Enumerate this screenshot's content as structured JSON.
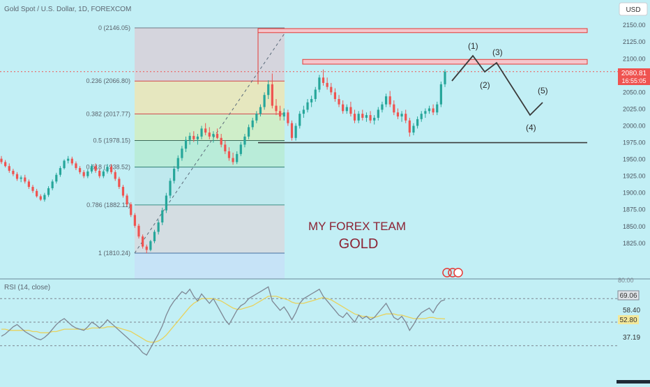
{
  "header": {
    "symbol": "Gold Spot / U.S. Dollar, 1D, FOREXCOM",
    "currency_button": "USD"
  },
  "colors": {
    "background": "#c2eff5",
    "up_candle": "#26a69a",
    "down_candle": "#ef5350",
    "zone_fill": "#f5c6cc",
    "zone_border": "#e53935",
    "rsi_line": "#7e8794",
    "rsi_ma_line": "#e8d25c",
    "price_tag": "#ef5350"
  },
  "price_axis": {
    "ticks": [
      "2150.00",
      "2125.00",
      "2100.00",
      "2075.00",
      "2050.00",
      "2025.00",
      "2000.00",
      "1975.00",
      "1950.00",
      "1925.00",
      "1900.00",
      "1875.00",
      "1850.00",
      "1825.00"
    ]
  },
  "last_price": {
    "value": "2080.81",
    "countdown": "16:55:05"
  },
  "fib_levels": [
    {
      "label": "0 (2146.05)",
      "price": 2146.05
    },
    {
      "label": "0.236 (2066.80)",
      "price": 2066.8
    },
    {
      "label": "0.382 (2017.77)",
      "price": 2017.77
    },
    {
      "label": "0.5 (1978.15)",
      "price": 1978.15
    },
    {
      "label": "0.618 (1938.52)",
      "price": 1938.52
    },
    {
      "label": "0.786 (1882.11)",
      "price": 1882.11
    },
    {
      "label": "1 (1810.24)",
      "price": 1810.24
    }
  ],
  "resistance_zones": [
    {
      "top": 2145,
      "bottom": 2139
    },
    {
      "top": 2099,
      "bottom": 2092
    }
  ],
  "support_line": 1975,
  "wave_labels": [
    "(1)",
    "(2)",
    "(3)",
    "(4)",
    "(5)"
  ],
  "watermark": {
    "line1": "MY FOREX TEAM",
    "line2": "GOLD"
  },
  "rsi": {
    "title": "RSI (14, close)",
    "value_tag": "69.06",
    "ma_tag": "52.80",
    "axis_labels": [
      "80.00",
      "58.40",
      "37.19"
    ]
  },
  "chart_data": {
    "type": "candlestick",
    "title": "Gold Spot / U.S. Dollar, 1D, FOREXCOM",
    "ylim": [
      1810,
      2160
    ],
    "candles": [
      [
        1951,
        1955,
        1943,
        1946
      ],
      [
        1946,
        1949,
        1938,
        1940
      ],
      [
        1940,
        1944,
        1930,
        1933
      ],
      [
        1933,
        1936,
        1925,
        1928
      ],
      [
        1928,
        1931,
        1918,
        1921
      ],
      [
        1921,
        1926,
        1916,
        1923
      ],
      [
        1923,
        1927,
        1914,
        1917
      ],
      [
        1917,
        1920,
        1906,
        1909
      ],
      [
        1909,
        1912,
        1900,
        1903
      ],
      [
        1903,
        1906,
        1893,
        1895
      ],
      [
        1895,
        1898,
        1888,
        1890
      ],
      [
        1890,
        1900,
        1887,
        1897
      ],
      [
        1897,
        1910,
        1894,
        1907
      ],
      [
        1907,
        1920,
        1904,
        1917
      ],
      [
        1917,
        1930,
        1914,
        1927
      ],
      [
        1927,
        1940,
        1924,
        1937
      ],
      [
        1937,
        1950,
        1935,
        1948
      ],
      [
        1948,
        1955,
        1944,
        1951
      ],
      [
        1951,
        1954,
        1941,
        1944
      ],
      [
        1944,
        1947,
        1934,
        1937
      ],
      [
        1937,
        1940,
        1928,
        1931
      ],
      [
        1931,
        1934,
        1922,
        1925
      ],
      [
        1925,
        1935,
        1922,
        1932
      ],
      [
        1932,
        1943,
        1929,
        1940
      ],
      [
        1940,
        1944,
        1930,
        1933
      ],
      [
        1933,
        1936,
        1922,
        1925
      ],
      [
        1925,
        1935,
        1922,
        1932
      ],
      [
        1932,
        1943,
        1929,
        1939
      ],
      [
        1939,
        1943,
        1928,
        1931
      ],
      [
        1931,
        1934,
        1918,
        1921
      ],
      [
        1921,
        1924,
        1906,
        1909
      ],
      [
        1909,
        1912,
        1893,
        1896
      ],
      [
        1896,
        1899,
        1880,
        1883
      ],
      [
        1883,
        1886,
        1864,
        1867
      ],
      [
        1867,
        1870,
        1848,
        1851
      ],
      [
        1851,
        1854,
        1832,
        1835
      ],
      [
        1835,
        1838,
        1817,
        1820
      ],
      [
        1820,
        1823,
        1810,
        1815
      ],
      [
        1815,
        1830,
        1813,
        1828
      ],
      [
        1828,
        1845,
        1825,
        1842
      ],
      [
        1842,
        1860,
        1838,
        1856
      ],
      [
        1856,
        1878,
        1852,
        1874
      ],
      [
        1874,
        1900,
        1870,
        1896
      ],
      [
        1896,
        1922,
        1892,
        1918
      ],
      [
        1918,
        1940,
        1914,
        1936
      ],
      [
        1936,
        1956,
        1932,
        1952
      ],
      [
        1952,
        1970,
        1948,
        1966
      ],
      [
        1966,
        1984,
        1961,
        1979
      ],
      [
        1979,
        1990,
        1972,
        1985
      ],
      [
        1985,
        1992,
        1976,
        1980
      ],
      [
        1980,
        1988,
        1972,
        1984
      ],
      [
        1984,
        2000,
        1980,
        1996
      ],
      [
        1996,
        2004,
        1986,
        1990
      ],
      [
        1990,
        1998,
        1980,
        1984
      ],
      [
        1984,
        1992,
        1975,
        1988
      ],
      [
        1988,
        1996,
        1980,
        1982
      ],
      [
        1982,
        1988,
        1968,
        1972
      ],
      [
        1972,
        1978,
        1958,
        1962
      ],
      [
        1962,
        1968,
        1948,
        1952
      ],
      [
        1952,
        1960,
        1942,
        1946
      ],
      [
        1946,
        1962,
        1943,
        1958
      ],
      [
        1958,
        1976,
        1955,
        1972
      ],
      [
        1972,
        1988,
        1968,
        1984
      ],
      [
        1984,
        2002,
        1980,
        1998
      ],
      [
        1998,
        2012,
        1994,
        2008
      ],
      [
        2008,
        2022,
        2004,
        2018
      ],
      [
        2018,
        2032,
        2014,
        2028
      ],
      [
        2028,
        2050,
        2024,
        2046
      ],
      [
        2046,
        2068,
        2040,
        2062
      ],
      [
        2062,
        2078,
        2026,
        2030
      ],
      [
        2030,
        2040,
        2016,
        2022
      ],
      [
        2022,
        2030,
        2008,
        2014
      ],
      [
        2014,
        2026,
        2008,
        2020
      ],
      [
        2020,
        2024,
        2000,
        2004
      ],
      [
        2004,
        2008,
        1978,
        1982
      ],
      [
        1982,
        2004,
        1978,
        2000
      ],
      [
        2000,
        2022,
        1996,
        2018
      ],
      [
        2018,
        2030,
        2012,
        2024
      ],
      [
        2024,
        2040,
        2020,
        2035
      ],
      [
        2035,
        2045,
        2028,
        2040
      ],
      [
        2040,
        2058,
        2036,
        2054
      ],
      [
        2054,
        2076,
        2050,
        2072
      ],
      [
        2072,
        2084,
        2060,
        2064
      ],
      [
        2064,
        2072,
        2054,
        2058
      ],
      [
        2058,
        2064,
        2046,
        2050
      ],
      [
        2050,
        2056,
        2036,
        2040
      ],
      [
        2040,
        2046,
        2028,
        2032
      ],
      [
        2032,
        2038,
        2018,
        2022
      ],
      [
        2022,
        2032,
        2018,
        2028
      ],
      [
        2028,
        2036,
        2014,
        2018
      ],
      [
        2018,
        2024,
        2004,
        2008
      ],
      [
        2008,
        2022,
        2004,
        2018
      ],
      [
        2018,
        2024,
        2008,
        2012
      ],
      [
        2012,
        2020,
        2006,
        2016
      ],
      [
        2016,
        2022,
        2004,
        2008
      ],
      [
        2008,
        2016,
        2002,
        2012
      ],
      [
        2012,
        2028,
        2008,
        2024
      ],
      [
        2024,
        2036,
        2020,
        2032
      ],
      [
        2032,
        2048,
        2028,
        2044
      ],
      [
        2044,
        2052,
        2028,
        2032
      ],
      [
        2032,
        2038,
        2016,
        2020
      ],
      [
        2020,
        2026,
        2010,
        2014
      ],
      [
        2014,
        2022,
        2006,
        2018
      ],
      [
        2018,
        2024,
        2004,
        2008
      ],
      [
        2008,
        2012,
        1984,
        1990
      ],
      [
        1990,
        2004,
        1986,
        2000
      ],
      [
        2000,
        2014,
        1996,
        2010
      ],
      [
        2010,
        2022,
        2006,
        2018
      ],
      [
        2018,
        2026,
        2012,
        2022
      ],
      [
        2022,
        2030,
        2018,
        2026
      ],
      [
        2026,
        2032,
        2016,
        2020
      ],
      [
        2020,
        2036,
        2016,
        2032
      ],
      [
        2032,
        2066,
        2028,
        2062
      ],
      [
        2062,
        2084,
        2058,
        2080.81
      ]
    ],
    "rsi": [
      38,
      40,
      43,
      46,
      48,
      45,
      42,
      40,
      38,
      36,
      35,
      37,
      40,
      44,
      48,
      51,
      53,
      50,
      47,
      45,
      44,
      43,
      46,
      50,
      48,
      45,
      48,
      52,
      49,
      46,
      43,
      40,
      37,
      34,
      31,
      28,
      24,
      22,
      28,
      34,
      40,
      47,
      56,
      63,
      68,
      72,
      76,
      74,
      78,
      72,
      68,
      74,
      70,
      66,
      70,
      64,
      58,
      52,
      48,
      54,
      60,
      64,
      66,
      70,
      72,
      74,
      76,
      78,
      80,
      68,
      64,
      60,
      63,
      58,
      52,
      58,
      66,
      70,
      72,
      74,
      76,
      78,
      72,
      68,
      64,
      60,
      56,
      54,
      58,
      54,
      50,
      56,
      53,
      55,
      52,
      54,
      58,
      62,
      66,
      60,
      54,
      52,
      55,
      50,
      43,
      48,
      54,
      58,
      60,
      62,
      58,
      64,
      68,
      69.06
    ],
    "rsi_ma": [
      44,
      44,
      43,
      43,
      43,
      43,
      43,
      43,
      42,
      42,
      41,
      41,
      41,
      42,
      42,
      43,
      44,
      44,
      44,
      44,
      44,
      44,
      44,
      45,
      45,
      45,
      45,
      46,
      46,
      46,
      45,
      44,
      43,
      42,
      40,
      38,
      36,
      34,
      33,
      33,
      34,
      36,
      39,
      43,
      47,
      51,
      55,
      59,
      63,
      66,
      68,
      70,
      70,
      70,
      70,
      69,
      68,
      66,
      64,
      62,
      61,
      61,
      62,
      63,
      64,
      66,
      68,
      70,
      72,
      72,
      72,
      71,
      70,
      69,
      67,
      66,
      66,
      66,
      67,
      68,
      69,
      70,
      71,
      70,
      69,
      67,
      65,
      63,
      61,
      59,
      57,
      56,
      55,
      55,
      54,
      54,
      55,
      56,
      57,
      57,
      57,
      56,
      56,
      55,
      54,
      53,
      53,
      53,
      53,
      54,
      54,
      53,
      53,
      52.8
    ],
    "rsi_axis": {
      "top": 80,
      "mid": 58.4,
      "low": 37.19
    }
  }
}
